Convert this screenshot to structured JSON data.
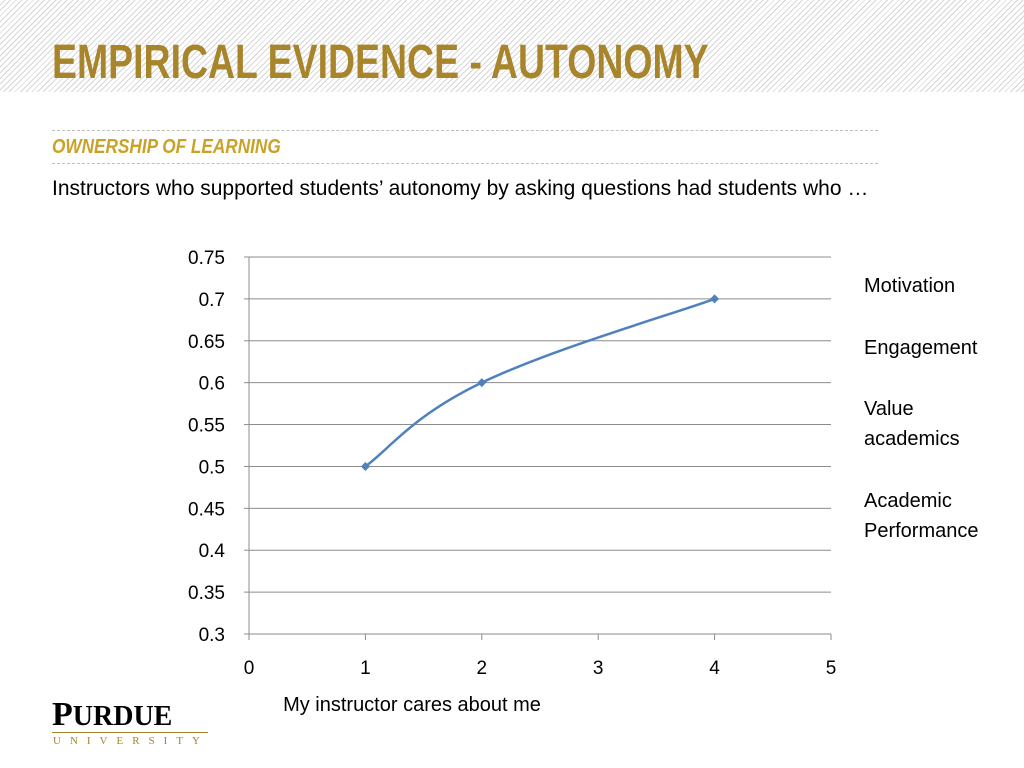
{
  "slide": {
    "title": "EMPIRICAL EVIDENCE - AUTONOMY",
    "subtitle": "OWNERSHIP OF LEARNING",
    "body": "Instructors who supported students’ autonomy by asking questions had students who …"
  },
  "legend_notes": [
    "Motivation",
    "Engagement",
    "Value academics",
    "Academic Performance"
  ],
  "logo": {
    "main_big": "P",
    "main_rest": "URDUE",
    "sub": "UNIVERSITY"
  },
  "colors": {
    "title": "#a8852a",
    "subtitle": "#c9a227",
    "series_line": "#4f81bd"
  },
  "chart_data": {
    "type": "line",
    "title": "",
    "xlabel": "My instructor cares about me",
    "ylabel": "",
    "xlim": [
      0,
      5
    ],
    "ylim": [
      0.3,
      0.75
    ],
    "x_ticks": [
      "0",
      "1",
      "2",
      "3",
      "4",
      "5"
    ],
    "y_ticks": [
      "0.3",
      "0.35",
      "0.4",
      "0.45",
      "0.5",
      "0.55",
      "0.6",
      "0.65",
      "0.7",
      "0.75"
    ],
    "grid": "horizontal",
    "smooth": true,
    "series": [
      {
        "x": [
          1,
          2,
          4
        ],
        "values": [
          0.5,
          0.6,
          0.7
        ]
      }
    ]
  }
}
